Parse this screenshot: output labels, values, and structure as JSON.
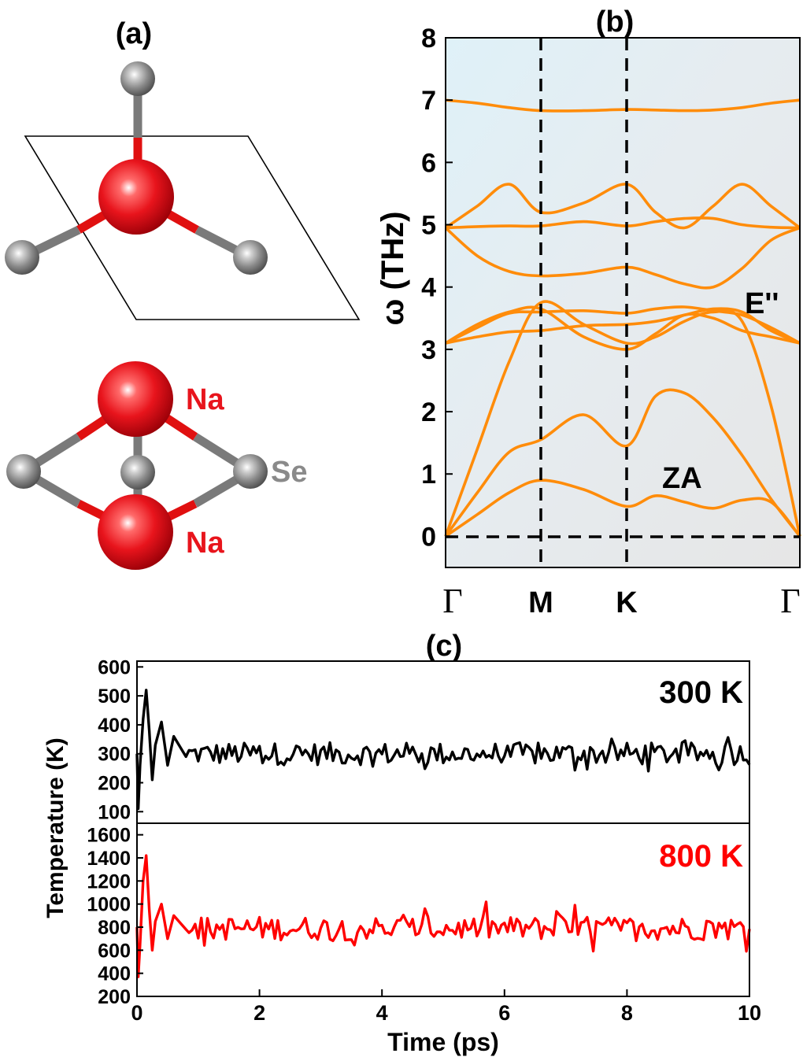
{
  "panels": {
    "a": {
      "label": "(a)",
      "atom_labels": {
        "na_top": "Na",
        "se": "Se",
        "na_bottom": "Na"
      },
      "colors": {
        "na": "#e8141c",
        "se": "#8a8a8a",
        "bond_red": "#e01010",
        "bond_grey": "#7a7a7a"
      }
    },
    "b": {
      "label": "(b)",
      "ylabel": "ω (THz)",
      "ylim": [
        -0.5,
        8
      ],
      "yticks": [
        "0",
        "1",
        "2",
        "3",
        "4",
        "5",
        "6",
        "7",
        "8"
      ],
      "kpoint_labels": [
        "Γ",
        "M",
        "K",
        "Γ"
      ],
      "annotations": {
        "e2": "E''",
        "za": "ZA"
      },
      "line_color": "#ff8c0a"
    },
    "c": {
      "label": "(c)",
      "ylabel": "Temperature (K)",
      "xlabel": "Time (ps)",
      "xticks": [
        "0",
        "2",
        "4",
        "6",
        "8",
        "10"
      ],
      "top_yticks": [
        "100",
        "200",
        "300",
        "400",
        "500",
        "600"
      ],
      "bottom_yticks": [
        "200",
        "400",
        "600",
        "800",
        "1000",
        "1200",
        "1400",
        "1600"
      ],
      "series_labels": {
        "t300": "300 K",
        "t800": "800 K"
      },
      "colors": {
        "t300": "#000000",
        "t800": "#ff0000"
      }
    }
  },
  "chart_data": [
    {
      "type": "line",
      "panel": "b",
      "ylabel": "ω (THz)",
      "ylim": [
        -0.5,
        8
      ],
      "x_kpoints": [
        "Γ",
        "M",
        "K",
        "Γ"
      ],
      "x": [
        0,
        1,
        2,
        3,
        4,
        5,
        6,
        7,
        8,
        9,
        10,
        11
      ],
      "series": [
        {
          "values": [
            0,
            0.35,
            0.7,
            0.9,
            0.75,
            0.48,
            0.65,
            0.55,
            0.45,
            0.58,
            0.55,
            0
          ]
        },
        {
          "values": [
            0,
            0.7,
            1.35,
            1.55,
            1.95,
            1.45,
            2.25,
            2.3,
            1.9,
            1.3,
            0.6,
            0
          ]
        },
        {
          "values": [
            0,
            1.4,
            2.8,
            3.75,
            3.4,
            3.1,
            3.2,
            3.45,
            3.6,
            3.45,
            2.1,
            0
          ]
        },
        {
          "values": [
            3.1,
            3.2,
            3.28,
            3.3,
            3.38,
            3.4,
            3.45,
            3.55,
            3.65,
            3.6,
            3.3,
            3.1
          ]
        },
        {
          "values": [
            3.1,
            3.4,
            3.6,
            3.65,
            3.2,
            3.0,
            3.25,
            3.55,
            3.5,
            3.3,
            3.2,
            3.1
          ]
        },
        {
          "values": [
            3.1,
            3.35,
            3.58,
            3.6,
            3.62,
            3.58,
            3.65,
            3.68,
            3.62,
            3.55,
            3.35,
            3.1
          ]
        },
        {
          "values": [
            4.95,
            4.5,
            4.25,
            4.18,
            4.22,
            4.32,
            4.2,
            4.05,
            4.0,
            4.3,
            4.75,
            4.95
          ]
        },
        {
          "values": [
            4.95,
            4.97,
            4.98,
            4.98,
            5.05,
            4.98,
            5.05,
            5.1,
            5.1,
            5.0,
            4.96,
            4.95
          ]
        },
        {
          "values": [
            4.95,
            5.3,
            5.65,
            5.2,
            5.35,
            5.65,
            5.2,
            4.95,
            5.3,
            5.65,
            5.3,
            4.95
          ]
        },
        {
          "values": [
            7.0,
            6.95,
            6.88,
            6.83,
            6.83,
            6.85,
            6.84,
            6.83,
            6.84,
            6.88,
            6.95,
            7.0
          ]
        }
      ]
    },
    {
      "type": "line",
      "panel": "c-top",
      "series": [
        {
          "name": "300 K"
        }
      ],
      "xlabel": "Time (ps)",
      "ylabel": "Temperature (K)",
      "xlim": [
        0,
        10
      ],
      "ylim": [
        60,
        620
      ],
      "x": [
        0.0,
        0.02,
        0.05,
        0.1,
        0.15,
        0.2,
        0.25,
        0.3,
        0.4,
        0.5,
        0.6,
        0.8,
        1.0,
        1.5,
        2.0,
        3.0,
        4.0,
        5.0,
        6.0,
        7.0,
        8.0,
        9.0,
        10.0
      ],
      "values": [
        300,
        110,
        260,
        420,
        520,
        380,
        210,
        330,
        410,
        260,
        360,
        290,
        300,
        310,
        300,
        300,
        310,
        290,
        300,
        300,
        310,
        300,
        300
      ],
      "mean": 300
    },
    {
      "type": "line",
      "panel": "c-bottom",
      "series": [
        {
          "name": "800 K"
        }
      ],
      "xlabel": "Time (ps)",
      "ylabel": "Temperature (K)",
      "xlim": [
        0,
        10
      ],
      "ylim": [
        200,
        1700
      ],
      "x": [
        0.0,
        0.02,
        0.05,
        0.1,
        0.15,
        0.2,
        0.25,
        0.3,
        0.4,
        0.5,
        0.6,
        0.8,
        1.0,
        1.5,
        2.0,
        3.0,
        4.0,
        5.0,
        6.0,
        7.0,
        8.0,
        9.0,
        10.0
      ],
      "values": [
        800,
        370,
        650,
        1200,
        1420,
        950,
        600,
        850,
        1000,
        700,
        900,
        780,
        800,
        790,
        810,
        800,
        800,
        790,
        810,
        800,
        800,
        800,
        800
      ],
      "mean": 790
    }
  ]
}
